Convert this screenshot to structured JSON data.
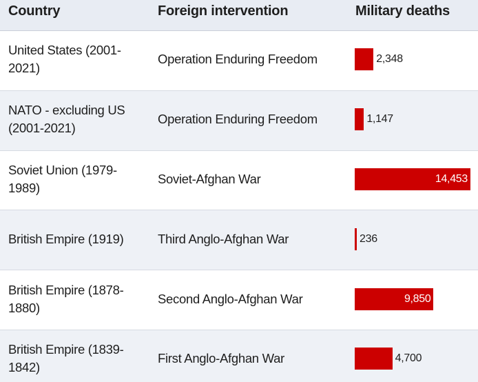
{
  "header": {
    "country": "Country",
    "intervention": "Foreign intervention",
    "deaths": "Military deaths"
  },
  "rows": [
    {
      "country": "United States (2001-2021)",
      "intervention": "Operation Enduring Freedom",
      "deaths_label": "2,348"
    },
    {
      "country": "NATO - excluding US (2001-2021)",
      "intervention": "Operation Enduring Freedom",
      "deaths_label": "1,147"
    },
    {
      "country": "Soviet Union (1979-1989)",
      "intervention": "Soviet-Afghan War",
      "deaths_label": "14,453"
    },
    {
      "country": "British Empire (1919)",
      "intervention": "Third Anglo-Afghan War",
      "deaths_label": "236"
    },
    {
      "country": "British Empire (1878-1880)",
      "intervention": "Second Anglo-Afghan War",
      "deaths_label": "9,850"
    },
    {
      "country": "British Empire (1839-1842)",
      "intervention": "First Anglo-Afghan War",
      "deaths_label": "4,700"
    }
  ],
  "colors": {
    "bar": "#cc0000",
    "header_bg": "#e8ecf3",
    "alt_row_bg": "#eef1f6"
  },
  "chart_data": {
    "type": "table",
    "columns": [
      "Country",
      "Foreign intervention",
      "Military deaths"
    ],
    "categories": [
      "United States (2001-2021)",
      "NATO - excluding US (2001-2021)",
      "Soviet Union (1979-1989)",
      "British Empire (1919)",
      "British Empire (1878-1880)",
      "British Empire (1839-1842)"
    ],
    "series": [
      {
        "values": [
          2348,
          1147,
          14453,
          236,
          9850,
          4700
        ]
      }
    ],
    "bar_orientation": "horizontal",
    "grid": false,
    "legend": "none"
  }
}
